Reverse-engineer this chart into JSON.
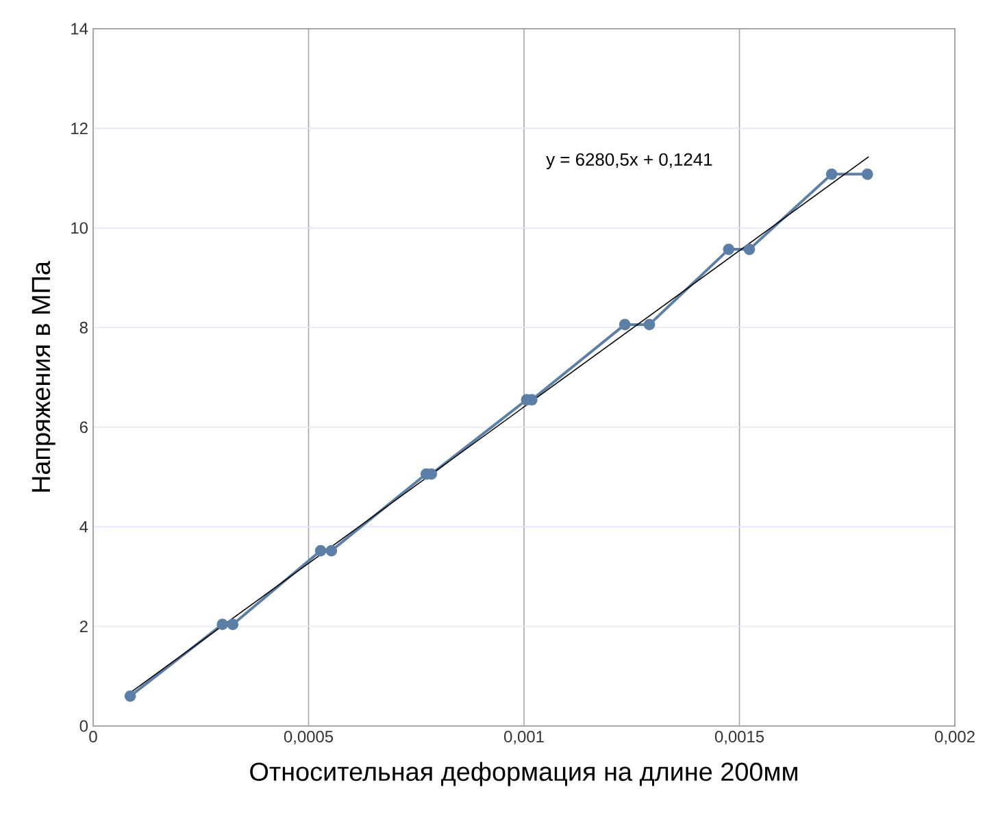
{
  "chart_data": {
    "type": "line",
    "xlabel": "Относительная деформация на длине 200мм",
    "ylabel": "Напряжения в МПа",
    "annotations": [
      "y = 6280,5x + 0,1241"
    ],
    "series": [
      {
        "color": "#5b7fa6",
        "marker": "circle",
        "x": [
          8.6e-05,
          0.0003,
          0.000324,
          0.000528,
          0.000553,
          0.000773,
          0.000785,
          0.001006,
          0.001018,
          0.001234,
          0.001291,
          0.001475,
          0.001523,
          0.001714,
          0.001797
        ],
        "values": [
          0.6,
          2.04,
          2.04,
          3.52,
          3.52,
          5.06,
          5.06,
          6.55,
          6.55,
          8.06,
          8.06,
          9.57,
          9.57,
          11.08,
          11.08
        ]
      },
      {
        "color": "#000000",
        "marker": "none",
        "x": [
          8e-05,
          0.0018
        ],
        "values": [
          0.63,
          11.43
        ]
      }
    ],
    "xlim": [
      0,
      0.002
    ],
    "xticks": [
      {
        "value": 0,
        "label": "0"
      },
      {
        "value": 0.0005,
        "label": "0,0005"
      },
      {
        "value": 0.001,
        "label": "0,001"
      },
      {
        "value": 0.0015,
        "label": "0,0015"
      },
      {
        "value": 0.002,
        "label": "0,002"
      }
    ],
    "ylim": [
      0,
      14
    ],
    "yticks": [
      0,
      2,
      4,
      6,
      8,
      10,
      12,
      14
    ],
    "grid": true
  }
}
